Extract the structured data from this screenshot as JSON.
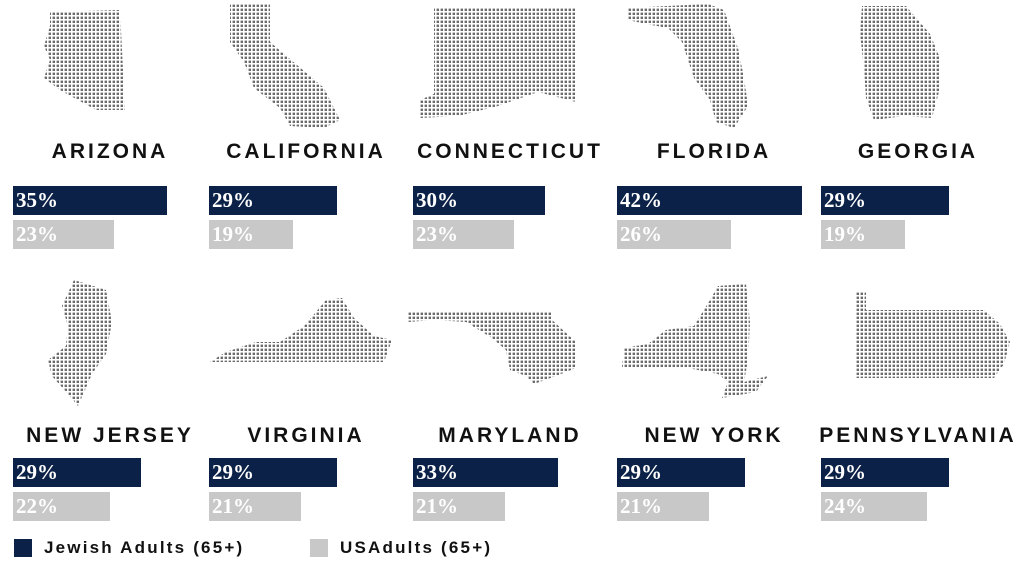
{
  "chart_data": {
    "type": "bar",
    "orientation": "horizontal",
    "value_unit": "%",
    "xlim": [
      0,
      42
    ],
    "series": [
      {
        "name": "Jewish Adults (65+)",
        "color": "#0b2147"
      },
      {
        "name": "US Adults (65+)",
        "color": "#c8c8c8"
      }
    ],
    "panels": [
      {
        "state": "ARIZONA",
        "icon": "arizona-map-icon",
        "values": [
          35,
          23
        ],
        "labels": [
          "35%",
          "23%"
        ]
      },
      {
        "state": "CALIFORNIA",
        "icon": "california-map-icon",
        "values": [
          29,
          19
        ],
        "labels": [
          "29%",
          "19%"
        ]
      },
      {
        "state": "CONNECTICUT",
        "icon": "connecticut-map-icon",
        "values": [
          30,
          23
        ],
        "labels": [
          "30%",
          "23%"
        ]
      },
      {
        "state": "FLORIDA",
        "icon": "florida-map-icon",
        "values": [
          42,
          26
        ],
        "labels": [
          "42%",
          "26%"
        ]
      },
      {
        "state": "GEORGIA",
        "icon": "georgia-map-icon",
        "values": [
          29,
          19
        ],
        "labels": [
          "29%",
          "19%"
        ]
      },
      {
        "state": "NEW JERSEY",
        "icon": "new-jersey-map-icon",
        "values": [
          29,
          22
        ],
        "labels": [
          "29%",
          "22%"
        ]
      },
      {
        "state": "VIRGINIA",
        "icon": "virginia-map-icon",
        "values": [
          29,
          21
        ],
        "labels": [
          "29%",
          "21%"
        ]
      },
      {
        "state": "MARYLAND",
        "icon": "maryland-map-icon",
        "values": [
          33,
          21
        ],
        "labels": [
          "33%",
          "21%"
        ]
      },
      {
        "state": "NEW YORK",
        "icon": "new-york-map-icon",
        "values": [
          29,
          21
        ],
        "labels": [
          "29%",
          "21%"
        ]
      },
      {
        "state": "PENNSYLVANIA",
        "icon": "pennsylvania-map-icon",
        "values": [
          29,
          24
        ],
        "labels": [
          "29%",
          "24%"
        ]
      }
    ],
    "legend": {
      "position": "bottom-left",
      "items": [
        {
          "label": "Jewish Adults (65+)",
          "color": "#0b2147"
        },
        {
          "label": "USAdults (65+)",
          "color": "#c8c8c8"
        }
      ]
    }
  }
}
